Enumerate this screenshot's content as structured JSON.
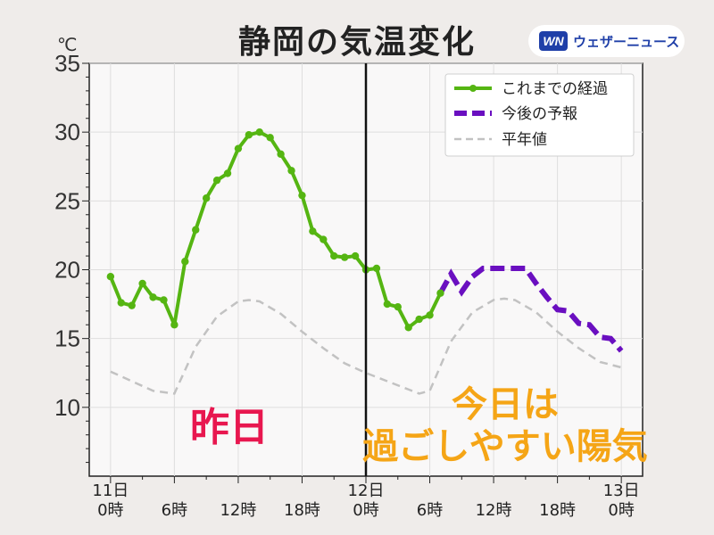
{
  "header": {
    "title": "静岡の気温変化",
    "unit": "℃",
    "logo_mark": "WN",
    "logo_text": "ウェザーニュース"
  },
  "colors": {
    "observed": "#55b512",
    "forecast": "#6a0fc0",
    "normal": "#c2c2c2",
    "yesterday_label": "#e8174f",
    "today_label": "#f5a516"
  },
  "annotations": {
    "yesterday": "昨日",
    "today_line1": "今日は",
    "today_line2": "過ごしやすい陽気"
  },
  "chart_data": {
    "type": "line",
    "title": "静岡の気温変化",
    "xlabel": "",
    "ylabel": "℃",
    "x_unit": "hours from 11日 0時",
    "xlim": [
      -2,
      50
    ],
    "ylim": [
      5,
      35
    ],
    "yticks": [
      10,
      15,
      20,
      25,
      30,
      35
    ],
    "xticks": [
      {
        "x": 0,
        "label": "11日\n0時"
      },
      {
        "x": 6,
        "label": "6時"
      },
      {
        "x": 12,
        "label": "12時"
      },
      {
        "x": 18,
        "label": "18時"
      },
      {
        "x": 24,
        "label": "12日\n0時"
      },
      {
        "x": 30,
        "label": "6時"
      },
      {
        "x": 36,
        "label": "12時"
      },
      {
        "x": 42,
        "label": "18時"
      },
      {
        "x": 48,
        "label": "13日\n0時"
      }
    ],
    "divider_x": 24,
    "grid": true,
    "legend_position": "top-right",
    "series": [
      {
        "name": "これまでの経過",
        "style": "solid-markers",
        "x": [
          0,
          1,
          2,
          3,
          4,
          5,
          6,
          7,
          8,
          9,
          10,
          11,
          12,
          13,
          14,
          15,
          16,
          17,
          18,
          19,
          20,
          21,
          22,
          23,
          24,
          25,
          26,
          27,
          28,
          29,
          30,
          31
        ],
        "y": [
          19.5,
          17.6,
          17.4,
          19.0,
          18.0,
          17.8,
          16.0,
          20.6,
          22.9,
          25.2,
          26.5,
          27.0,
          28.8,
          29.8,
          30.0,
          29.6,
          28.4,
          27.2,
          25.4,
          22.8,
          22.2,
          21.0,
          20.9,
          21.0,
          20.0,
          20.1,
          17.5,
          17.3,
          15.8,
          16.4,
          16.7,
          18.3
        ]
      },
      {
        "name": "今後の予報",
        "style": "dashed-thick",
        "x": [
          31,
          32,
          33,
          34,
          35,
          36,
          37,
          38,
          39,
          40,
          41,
          42,
          43,
          44,
          45,
          46,
          47,
          48
        ],
        "y": [
          18.3,
          19.7,
          18.4,
          19.5,
          20.1,
          20.1,
          20.1,
          20.1,
          20.1,
          19.0,
          18.0,
          17.1,
          17.0,
          16.1,
          16.0,
          15.1,
          15.0,
          14.1
        ]
      },
      {
        "name": "平年値",
        "style": "dashed-thin",
        "x": [
          0,
          2,
          4,
          6,
          8,
          10,
          12,
          13,
          14,
          16,
          18,
          20,
          22,
          24,
          26,
          28,
          29,
          30,
          32,
          34,
          36,
          37,
          38,
          40,
          42,
          44,
          46,
          48
        ],
        "y": [
          12.6,
          11.9,
          11.2,
          11.0,
          14.4,
          16.6,
          17.7,
          17.8,
          17.7,
          16.8,
          15.5,
          14.3,
          13.2,
          12.5,
          11.9,
          11.3,
          11.0,
          11.2,
          14.8,
          16.9,
          17.8,
          17.9,
          17.8,
          16.9,
          15.5,
          14.3,
          13.3,
          12.9
        ]
      }
    ]
  }
}
